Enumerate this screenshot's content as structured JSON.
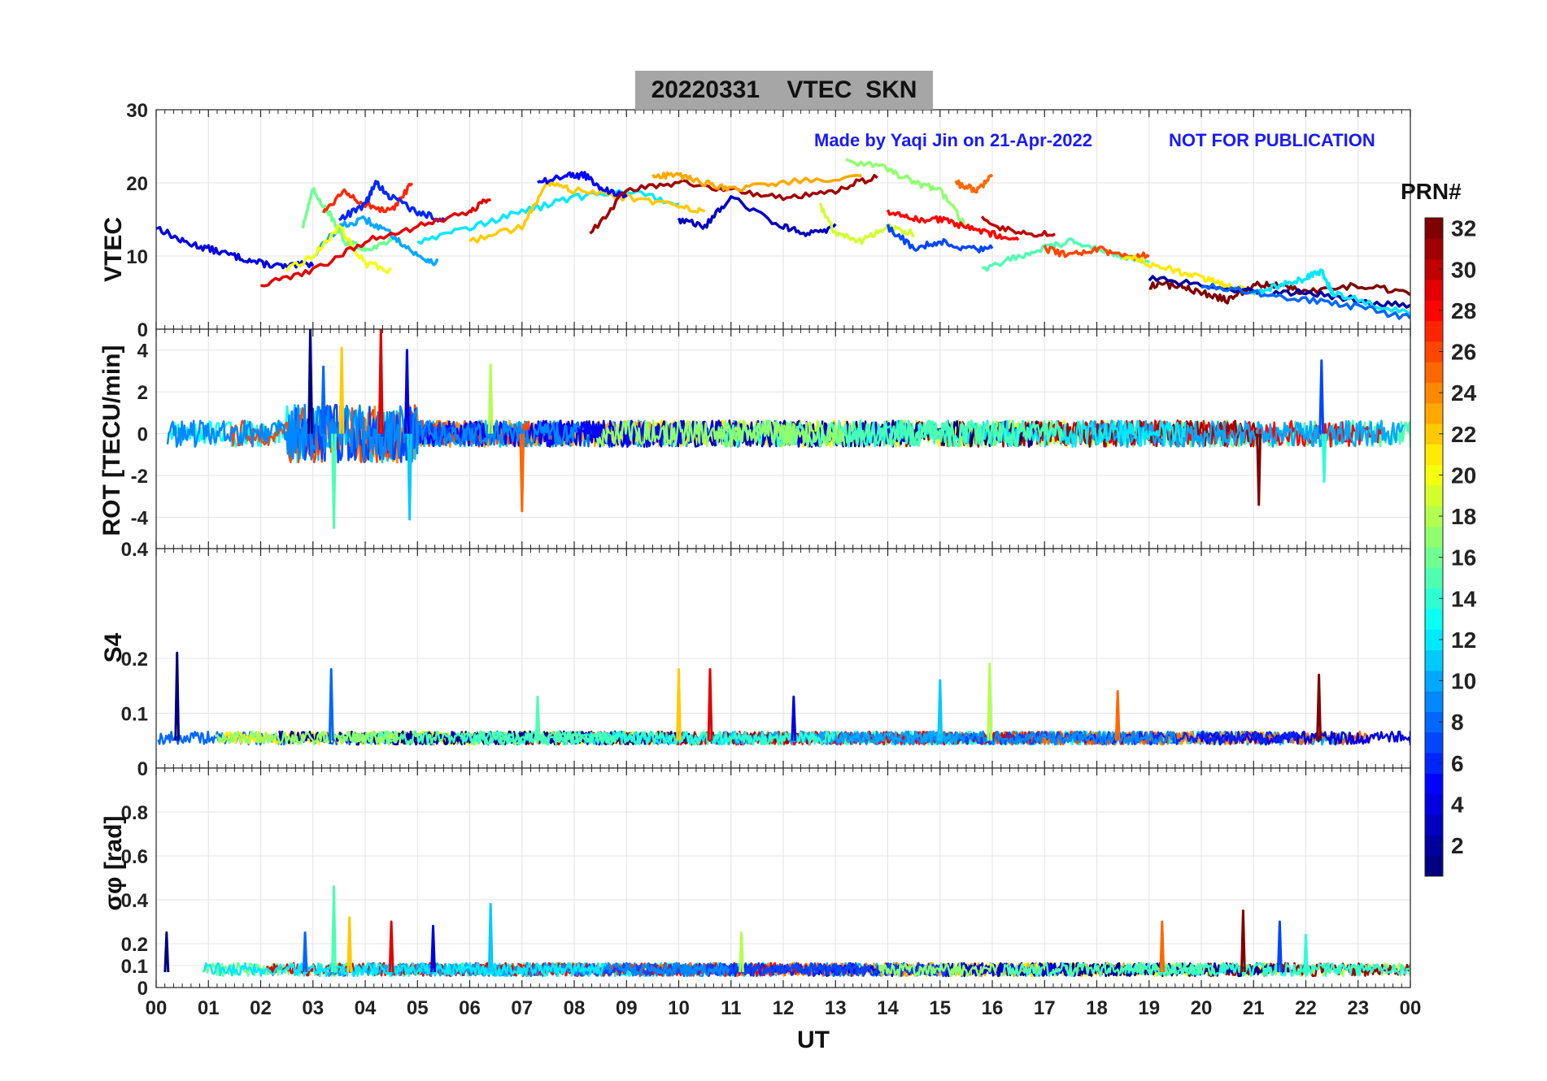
{
  "title": {
    "date": "20220331",
    "quantity": "VTEC",
    "station": "SKN"
  },
  "credit": {
    "made_by": "Made by Yaqi Jin on 21-Apr-2022",
    "notice": "NOT FOR PUBLICATION"
  },
  "xaxis": {
    "label": "UT",
    "ticks": [
      "00",
      "01",
      "02",
      "03",
      "04",
      "05",
      "06",
      "07",
      "08",
      "09",
      "10",
      "11",
      "12",
      "13",
      "14",
      "15",
      "16",
      "17",
      "18",
      "19",
      "20",
      "21",
      "22",
      "23",
      "00"
    ]
  },
  "colorbar": {
    "title": "PRN#",
    "ticks": [
      "2",
      "4",
      "6",
      "8",
      "10",
      "12",
      "14",
      "16",
      "18",
      "20",
      "22",
      "24",
      "26",
      "28",
      "30",
      "32"
    ],
    "range": [
      1,
      32
    ]
  },
  "chart_data": [
    {
      "type": "line",
      "title": "VTEC",
      "ylabel": "VTEC",
      "ylim": [
        0,
        30
      ],
      "yticks": [
        "0",
        "10",
        "20",
        "30"
      ],
      "xlim": [
        0,
        24
      ],
      "series": [
        {
          "name": "PRN 4",
          "x": [
            0,
            0.5,
            1,
            1.5,
            2,
            2.5,
            3
          ],
          "values": [
            14,
            12,
            11,
            10,
            9,
            8.5,
            9
          ]
        },
        {
          "name": "PRN 10",
          "x": [
            3,
            3.5,
            4,
            4.5,
            5,
            5.4
          ],
          "values": [
            10,
            14,
            15,
            13,
            10,
            9
          ]
        },
        {
          "name": "PRN 16",
          "x": [
            2.8,
            3,
            3.3,
            3.6,
            4,
            4.5
          ],
          "values": [
            14,
            19,
            16,
            12,
            11,
            12
          ]
        },
        {
          "name": "PRN 20",
          "x": [
            2.5,
            3,
            3.5,
            4,
            4.5
          ],
          "values": [
            8,
            10,
            14,
            9,
            8
          ]
        },
        {
          "name": "PRN 27",
          "x": [
            3.2,
            3.6,
            4,
            4.5,
            4.9
          ],
          "values": [
            16,
            19,
            17,
            16,
            20
          ]
        },
        {
          "name": "PRN 6",
          "x": [
            3.5,
            4,
            4.2,
            4.5,
            5,
            5.5
          ],
          "values": [
            15,
            17,
            20,
            18,
            16,
            15
          ]
        },
        {
          "name": "PRN 29",
          "x": [
            2,
            3,
            4,
            5,
            6,
            6.4
          ],
          "values": [
            6,
            8,
            12,
            14,
            16,
            18
          ]
        },
        {
          "name": "PRN 12",
          "x": [
            5,
            6,
            7,
            8,
            9,
            10
          ],
          "values": [
            12,
            14,
            16,
            18,
            19,
            17
          ]
        },
        {
          "name": "PRN 22",
          "x": [
            6,
            7,
            7.5,
            8,
            9,
            10,
            10.5
          ],
          "values": [
            12,
            14,
            20,
            19,
            18,
            17,
            16
          ]
        },
        {
          "name": "PRN 5",
          "x": [
            7.3,
            7.8,
            8.2,
            8.6,
            9
          ],
          "values": [
            20,
            21,
            21,
            19,
            18
          ]
        },
        {
          "name": "PRN 31",
          "x": [
            8.3,
            9,
            10,
            11,
            12,
            13,
            13.8
          ],
          "values": [
            13,
            19,
            20,
            19,
            18,
            19,
            21
          ]
        },
        {
          "name": "PRN 23",
          "x": [
            9.5,
            10,
            10.5,
            11,
            12,
            13.5
          ],
          "values": [
            21,
            21,
            20,
            19,
            20,
            21
          ]
        },
        {
          "name": "PRN 3",
          "x": [
            10,
            10.5,
            11,
            12,
            12.5,
            13
          ],
          "values": [
            15,
            14,
            18,
            14,
            13,
            14
          ]
        },
        {
          "name": "PRN 19",
          "x": [
            12.7,
            13,
            13.5,
            14,
            14.5
          ],
          "values": [
            17,
            13,
            12,
            14,
            13
          ]
        },
        {
          "name": "PRN 17",
          "x": [
            13.2,
            14,
            14.5,
            15,
            15.5
          ],
          "values": [
            23,
            22,
            20,
            19,
            14
          ]
        },
        {
          "name": "PRN 25",
          "x": [
            15.3,
            15.7,
            16
          ],
          "values": [
            20,
            19,
            21
          ]
        },
        {
          "name": "PRN 28",
          "x": [
            14,
            14.5,
            15,
            15.5,
            16,
            16.5
          ],
          "values": [
            16,
            15,
            15,
            14,
            13,
            12
          ]
        },
        {
          "name": "PRN 7",
          "x": [
            14,
            14.5,
            15,
            15.5,
            16
          ],
          "values": [
            14,
            11,
            12,
            11,
            11
          ]
        },
        {
          "name": "PRN 15",
          "x": [
            15.8,
            16.5,
            17,
            17.5,
            18,
            18.5,
            19
          ],
          "values": [
            8,
            10,
            11,
            12,
            11,
            10,
            9
          ]
        },
        {
          "name": "PRN 30",
          "x": [
            15.8,
            16.5,
            17.2
          ],
          "values": [
            15,
            13,
            13
          ]
        },
        {
          "name": "PRN 26",
          "x": [
            17,
            17.5,
            18,
            18.5,
            19
          ],
          "values": [
            11,
            10,
            11,
            10,
            10
          ]
        },
        {
          "name": "PRN 21",
          "x": [
            18.5,
            19,
            19.5,
            20,
            20.5,
            21
          ],
          "values": [
            10,
            9,
            8,
            7,
            6,
            5
          ]
        },
        {
          "name": "PRN 32",
          "x": [
            19,
            19.5,
            20,
            20.5,
            21,
            21.5,
            22,
            23,
            24
          ],
          "values": [
            6,
            6,
            5,
            4,
            6,
            6,
            5,
            6,
            5
          ]
        },
        {
          "name": "PRN 2",
          "x": [
            19,
            20,
            21,
            22,
            23,
            24
          ],
          "values": [
            7,
            6,
            5,
            5,
            4,
            3
          ]
        },
        {
          "name": "PRN 12b",
          "x": [
            21,
            21.5,
            22,
            22.3,
            22.5,
            23,
            24
          ],
          "values": [
            5,
            6,
            7,
            8,
            5,
            4,
            2
          ]
        },
        {
          "name": "PRN 8",
          "x": [
            20,
            21,
            22,
            23,
            24
          ],
          "values": [
            6,
            5,
            4,
            3,
            1.5
          ]
        }
      ]
    },
    {
      "type": "line",
      "title": "ROT",
      "ylabel": "ROT [TECU/min]",
      "ylim": [
        -5.5,
        5
      ],
      "yticks": [
        "-4",
        "-2",
        "0",
        "2",
        "4"
      ],
      "xlim": [
        0,
        24
      ],
      "baseline": 0,
      "spikes": [
        {
          "x": 2.95,
          "value": 5.0
        },
        {
          "x": 3.2,
          "value": 3.2
        },
        {
          "x": 3.4,
          "value": -4.5
        },
        {
          "x": 3.55,
          "value": 4.1
        },
        {
          "x": 4.3,
          "value": 5.0
        },
        {
          "x": 4.8,
          "value": 4.0
        },
        {
          "x": 4.85,
          "value": -4.1
        },
        {
          "x": 6.4,
          "value": 3.3
        },
        {
          "x": 7.0,
          "value": -3.7
        },
        {
          "x": 21.1,
          "value": -3.4
        },
        {
          "x": 22.3,
          "value": 3.5
        },
        {
          "x": 22.35,
          "value": -2.3
        }
      ]
    },
    {
      "type": "line",
      "title": "S4",
      "ylabel": "S4",
      "ylim": [
        0,
        0.4
      ],
      "yticks": [
        "0",
        "0.1",
        "0.2",
        "0.4"
      ],
      "xlim": [
        0,
        24
      ],
      "baseline": 0.05,
      "spikes": [
        {
          "x": 0.4,
          "value": 0.21
        },
        {
          "x": 3.35,
          "value": 0.18
        },
        {
          "x": 7.3,
          "value": 0.13
        },
        {
          "x": 10.0,
          "value": 0.18
        },
        {
          "x": 10.6,
          "value": 0.18
        },
        {
          "x": 12.2,
          "value": 0.13
        },
        {
          "x": 15.0,
          "value": 0.16
        },
        {
          "x": 15.95,
          "value": 0.19
        },
        {
          "x": 18.4,
          "value": 0.14
        },
        {
          "x": 22.25,
          "value": 0.17
        }
      ]
    },
    {
      "type": "line",
      "title": "sigma_phi",
      "ylabel": "σφ [rad]",
      "ylim": [
        0,
        1
      ],
      "yticks": [
        "0",
        "0.1",
        "0.2",
        "0.4",
        "0.6",
        "0.8"
      ],
      "xlim": [
        0,
        24
      ],
      "baseline": 0.07,
      "spikes": [
        {
          "x": 0.2,
          "value": 0.25
        },
        {
          "x": 2.85,
          "value": 0.25
        },
        {
          "x": 3.4,
          "value": 0.46
        },
        {
          "x": 3.7,
          "value": 0.32
        },
        {
          "x": 4.5,
          "value": 0.3
        },
        {
          "x": 5.3,
          "value": 0.28
        },
        {
          "x": 6.4,
          "value": 0.38
        },
        {
          "x": 11.2,
          "value": 0.25
        },
        {
          "x": 19.25,
          "value": 0.3
        },
        {
          "x": 20.8,
          "value": 0.35
        },
        {
          "x": 21.5,
          "value": 0.3
        },
        {
          "x": 22.0,
          "value": 0.24
        }
      ]
    }
  ]
}
